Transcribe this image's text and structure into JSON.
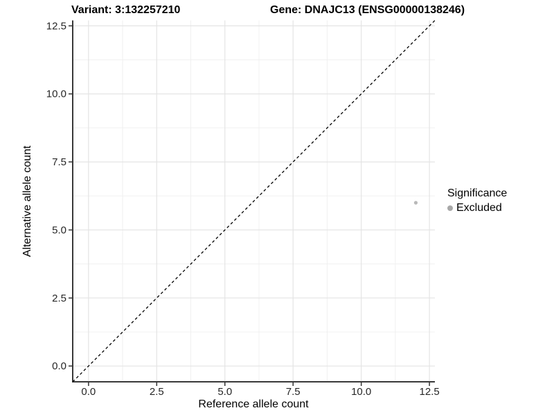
{
  "header": {
    "variant_title": "Variant: 3:132257210",
    "gene_title": "Gene: DNAJC13 (ENSG00000138246)"
  },
  "chart_data": {
    "type": "scatter",
    "title": "Variant: 3:132257210 / Gene: DNAJC13 (ENSG00000138246)",
    "xlabel": "Reference allele count",
    "ylabel": "Alternative allele count",
    "xlim": [
      -0.58,
      12.7
    ],
    "ylim": [
      -0.58,
      12.7
    ],
    "x_ticks": {
      "values": [
        0,
        2.5,
        5,
        7.5,
        10,
        12.5
      ],
      "labels": [
        "0.0",
        "2.5",
        "5.0",
        "7.5",
        "10.0",
        "12.5"
      ]
    },
    "y_ticks": {
      "values": [
        0,
        2.5,
        5,
        7.5,
        10,
        12.5
      ],
      "labels": [
        "0.0",
        "2.5",
        "5.0",
        "7.5",
        "10.0",
        "12.5"
      ]
    },
    "minor_ticks": [
      1.25,
      3.75,
      6.25,
      8.75,
      11.25
    ],
    "grid": "on",
    "identity_line": {
      "type": "dashed",
      "color": "#000000",
      "from": [
        -0.58,
        -0.58
      ],
      "to": [
        12.7,
        12.7
      ]
    },
    "series": [
      {
        "name": "Excluded",
        "color": "#b9b9b9",
        "points": [
          {
            "x": 12,
            "y": 6
          }
        ]
      }
    ],
    "legend": {
      "position": "right",
      "title": "Significance",
      "items": [
        {
          "label": "Excluded",
          "color": "#a8a8a8"
        }
      ]
    },
    "colors": {
      "axis_line": "#383838",
      "tick_mark": "#333333",
      "grid_major": "#e4e4e4",
      "grid_minor": "#f0f0f0",
      "background": "#ffffff"
    }
  }
}
